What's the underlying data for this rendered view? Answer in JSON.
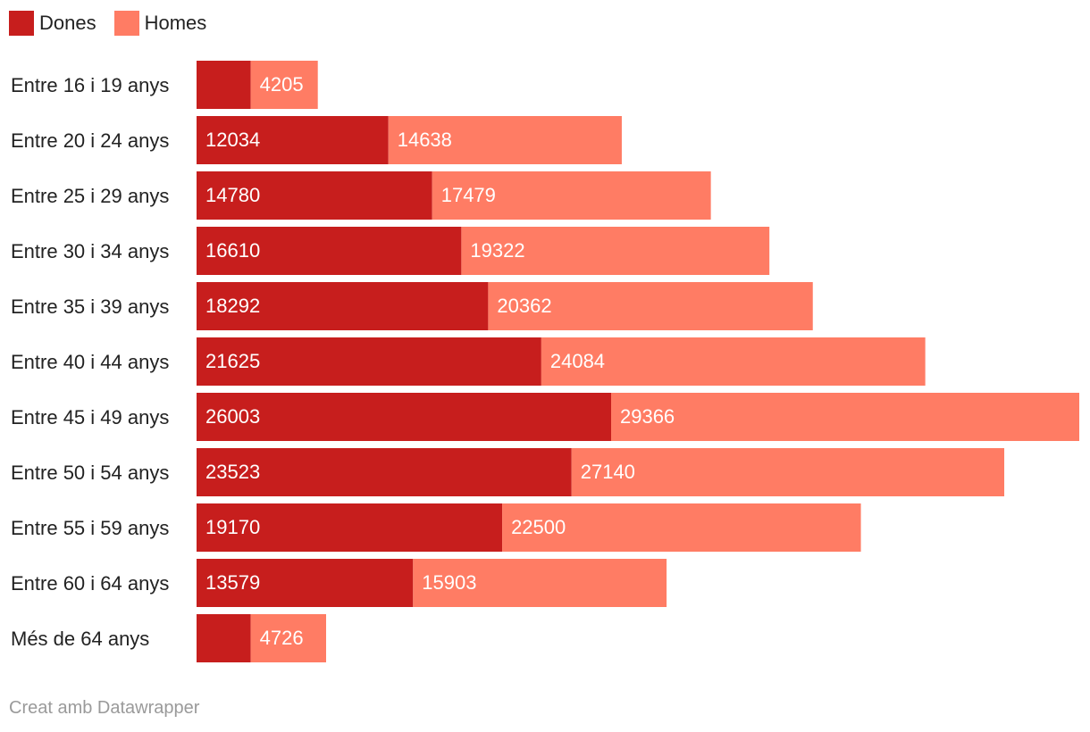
{
  "chart_data": {
    "type": "bar",
    "orientation": "horizontal",
    "stacked": true,
    "categories": [
      "Entre 16 i 19 anys",
      "Entre 20 i 24 anys",
      "Entre 25 i 29 anys",
      "Entre 30 i 34 anys",
      "Entre 35 i 39 anys",
      "Entre 40 i 44 anys",
      "Entre 45 i 49 anys",
      "Entre 50 i 54 anys",
      "Entre 55 i 59 anys",
      "Entre 60 i 64 anys",
      "Més de 64 anys"
    ],
    "series": [
      {
        "name": "Dones",
        "color": "#c71e1d",
        "values": [
          3400,
          12034,
          14780,
          16610,
          18292,
          21625,
          26003,
          23523,
          19170,
          13579,
          3400
        ],
        "labels": [
          "",
          "12034",
          "14780",
          "16610",
          "18292",
          "21625",
          "26003",
          "23523",
          "19170",
          "13579",
          ""
        ]
      },
      {
        "name": "Homes",
        "color": "#ff7c64",
        "values": [
          4205,
          14638,
          17479,
          19322,
          20362,
          24084,
          29366,
          27140,
          22500,
          15903,
          4726
        ],
        "labels": [
          "4205",
          "14638",
          "17479",
          "19322",
          "20362",
          "24084",
          "29366",
          "27140",
          "22500",
          "15903",
          "4726"
        ]
      }
    ],
    "legend_position": "top-left",
    "grid": false
  },
  "legend": {
    "dones": "Dones",
    "homes": "Homes"
  },
  "footer": "Creat amb Datawrapper"
}
